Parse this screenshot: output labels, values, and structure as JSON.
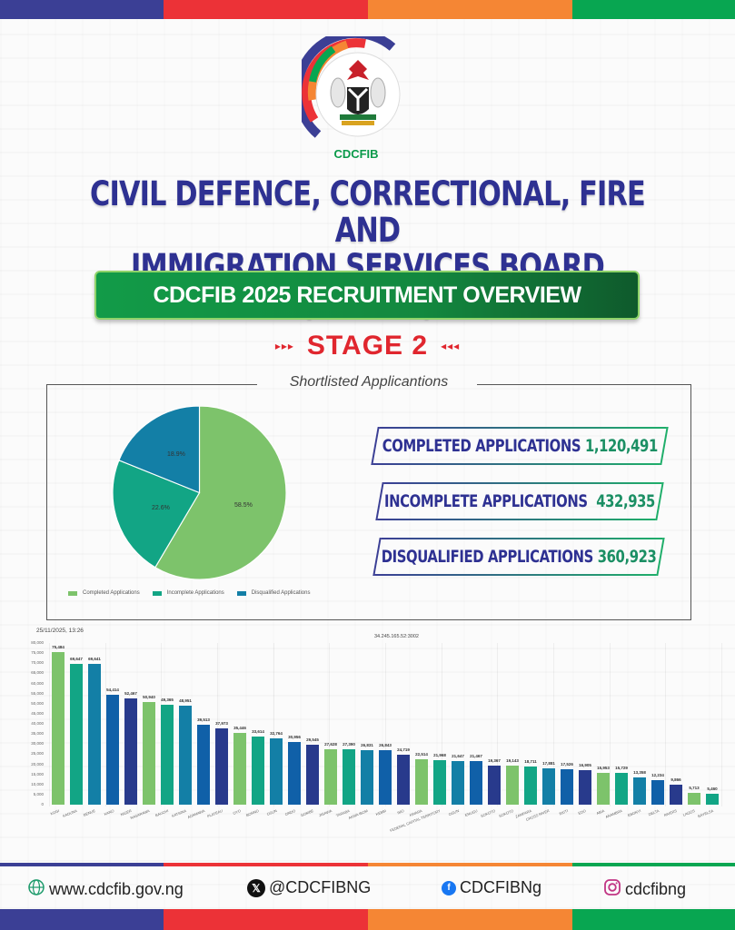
{
  "brand_colors": {
    "blue": "#3b3f95",
    "red": "#ec3237",
    "orange": "#f58634",
    "green": "#08a651"
  },
  "logo": {
    "ring_text": "CIVIL DEFENCE, CORRECTIONAL, FIRE AND IMMIGRATION SERVICES BOARD",
    "acronym": "CDCFIB"
  },
  "header": {
    "title_line1": "CIVIL DEFENCE, CORRECTIONAL, FIRE AND",
    "title_line2": "IMMIGRATION SERVICES BOARD (CDCFIB)",
    "banner": "CDCFIB 2025 RECRUITMENT OVERVIEW",
    "stage": "STAGE 2",
    "stage_arrows_left": "▸▸▸",
    "stage_arrows_right": "◂◂◂"
  },
  "panel": {
    "title": "Shortlisted Applicantions"
  },
  "stats": [
    {
      "label": "COMPLETED APPLICATIONS",
      "value": "1,120,491"
    },
    {
      "label": "INCOMPLETE APPLICATIONS",
      "value": "432,935"
    },
    {
      "label": "DISQUALIFIED APPLICATIONS",
      "value": "360,923"
    }
  ],
  "bar_meta": {
    "timestamp": "25/11/2025, 13:26",
    "ip": "34.245.165.52:3002"
  },
  "footer": {
    "website": "www.cdcfib.gov.ng",
    "x": "@CDCFIBNG",
    "facebook": "CDCFIBNg",
    "instagram": "cdcfibng"
  },
  "chart_data": [
    {
      "type": "pie",
      "title": "Shortlisted Applicantions",
      "categories": [
        "Completed Applications",
        "Incomplete Applications",
        "Disqualified Applications"
      ],
      "values": [
        58.5,
        22.6,
        18.9
      ],
      "labels": [
        "58.5%",
        "22.6%",
        "18.9%"
      ],
      "colors": [
        "#7dc36b",
        "#12a585",
        "#137fa6"
      ],
      "legend_position": "bottom"
    },
    {
      "type": "bar",
      "title": "",
      "xlabel": "",
      "ylabel": "",
      "ylim": [
        0,
        80000
      ],
      "yticks": [
        "0",
        "5,000",
        "10,000",
        "15,000",
        "20,000",
        "25,000",
        "30,000",
        "35,000",
        "40,000",
        "45,000",
        "50,000",
        "55,000",
        "60,000",
        "65,000",
        "70,000",
        "75,000",
        "80,000"
      ],
      "grid": true,
      "categories": [
        "KOGI",
        "KADUNA",
        "BENUE",
        "KANO",
        "NIGER",
        "NASARAWA",
        "BAUCHI",
        "KATSINA",
        "ADAMAWA",
        "PLATEAU",
        "OYO",
        "BORNO",
        "OSUN",
        "ONDO",
        "GOMBE",
        "JIGAWA",
        "TARABA",
        "AKWA IBOM",
        "KEBBI",
        "IMO",
        "KWARA",
        "FEDERAL CAPITAL TERRITORY",
        "OGUN",
        "ENUGU",
        "SOKOTO",
        "KOGI2",
        "ZAMFARA",
        "CROSS RIVER",
        "EKITI",
        "EDO",
        "ABIA",
        "ANAMBRA",
        "EBONYI",
        "DELTA",
        "RIVERS",
        "LAGOS",
        "BAYELSA"
      ],
      "values": [
        75484,
        69647,
        69641,
        54414,
        52467,
        50940,
        49365,
        48951,
        39513,
        37973,
        35446,
        33614,
        32764,
        30956,
        29545,
        27628,
        27390,
        26831,
        26843,
        24719,
        22514,
        21968,
        21647,
        21467,
        19367,
        19143,
        18711,
        17881,
        17526,
        16905,
        15953,
        15729,
        13358,
        12234,
        9866,
        5713,
        5460
      ],
      "value_labels": [
        "75,484",
        "69,647",
        "69,641",
        "54,414",
        "52,467",
        "50,940",
        "49,365",
        "48,951",
        "39,513",
        "37,973",
        "35,446",
        "33,614",
        "32,764",
        "30,956",
        "29,545",
        "27,628",
        "27,390",
        "26,831",
        "26,843",
        "24,719",
        "22,514",
        "21,968",
        "21,647",
        "21,467",
        "19,367",
        "19,143",
        "18,711",
        "17,881",
        "17,526",
        "16,905",
        "15,953",
        "15,729",
        "13,358",
        "12,234",
        "9,866",
        "5,713",
        "5,460"
      ],
      "colors": [
        "#7dc36b",
        "#12a585",
        "#137fa6",
        "#1060a8",
        "#283a8c"
      ]
    }
  ]
}
